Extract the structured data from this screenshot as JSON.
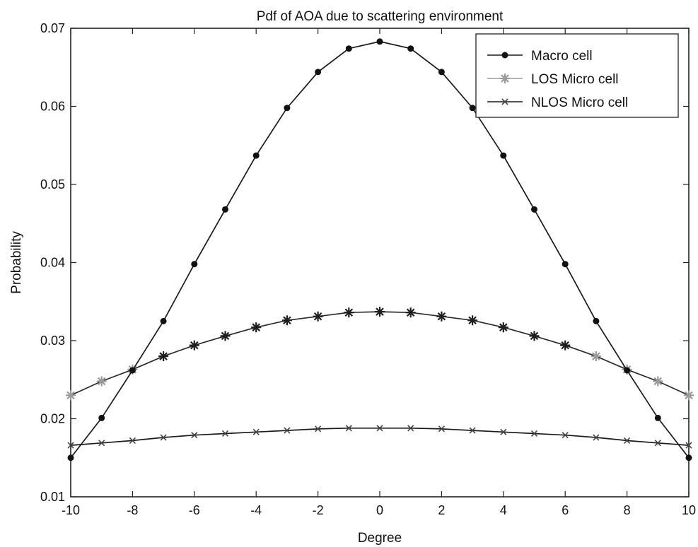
{
  "chart_data": {
    "type": "line",
    "title": "Pdf of AOA due to scattering environment",
    "xlabel": "Degree",
    "ylabel": "Probability",
    "xlim": [
      -10,
      10
    ],
    "ylim": [
      0.01,
      0.07
    ],
    "xticks": [
      "-10",
      "-8",
      "-6",
      "-4",
      "-2",
      "0",
      "2",
      "4",
      "6",
      "8",
      "10"
    ],
    "yticks": [
      "0.01",
      "0.02",
      "0.03",
      "0.04",
      "0.05",
      "0.06",
      "0.07"
    ],
    "grid": false,
    "legend_position": "top-right",
    "x": [
      -10,
      -9,
      -8,
      -7,
      -6,
      -5,
      -4,
      -3,
      -2,
      -1,
      0,
      1,
      2,
      3,
      4,
      5,
      6,
      7,
      8,
      9,
      10
    ],
    "series": [
      {
        "name": "Macro cell",
        "marker": "dot",
        "color": "#111111",
        "values": [
          0.015,
          0.0201,
          0.0262,
          0.0325,
          0.0398,
          0.0468,
          0.0537,
          0.0598,
          0.0644,
          0.0674,
          0.0683,
          0.0674,
          0.0644,
          0.0598,
          0.0537,
          0.0468,
          0.0398,
          0.0325,
          0.0262,
          0.0201,
          0.015
        ]
      },
      {
        "name": "LOS Micro cell",
        "marker": "star",
        "color": "#9a9a9a",
        "values": [
          0.023,
          0.0248,
          0.0263,
          0.028,
          0.0294,
          0.0306,
          0.0317,
          0.0326,
          0.0331,
          0.0336,
          0.0337,
          0.0336,
          0.0331,
          0.0326,
          0.0317,
          0.0306,
          0.0294,
          0.028,
          0.0263,
          0.0248,
          0.023
        ]
      },
      {
        "name": "NLOS Micro cell",
        "marker": "x",
        "color": "#444444",
        "values": [
          0.0166,
          0.0169,
          0.0172,
          0.0176,
          0.0179,
          0.0181,
          0.0183,
          0.0185,
          0.0187,
          0.0188,
          0.0188,
          0.0188,
          0.0187,
          0.0185,
          0.0183,
          0.0181,
          0.0179,
          0.0176,
          0.0172,
          0.0169,
          0.0166
        ]
      }
    ]
  }
}
